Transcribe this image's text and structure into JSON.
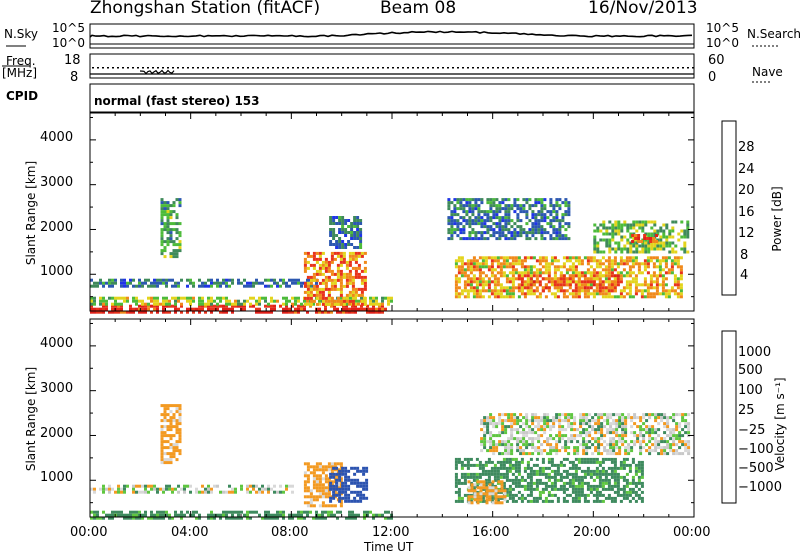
{
  "header": {
    "station": "Zhongshan Station",
    "mode": "(fitACF)",
    "beam": "Beam 08",
    "date": "16/Nov/2013"
  },
  "aux_panels": {
    "nsky_label": "N.Sky",
    "nsky_ticks": [
      "10^5",
      "10^0"
    ],
    "nsearch_label": "N.Search",
    "nsearch_ticks": [
      "10^5",
      "10^0"
    ],
    "freq_label": "Freq.",
    "freq_unit": "[MHz]",
    "freq_ticks": [
      "18",
      "8"
    ],
    "nave_label": "Nave",
    "nave_ticks": [
      "60",
      "0"
    ],
    "cpid_label": "CPID",
    "cpid_text": "normal (fast stereo) 153"
  },
  "chart_data": [
    {
      "type": "heatmap",
      "name": "power",
      "ylabel": "Slant Range [km]",
      "yticks": [
        "1000",
        "2000",
        "3000",
        "4000"
      ],
      "ylim": [
        180,
        4600
      ],
      "xlim": [
        "00:00",
        "24:00"
      ],
      "colorbar": {
        "label": "Power [dB]",
        "ticks": [
          "4",
          "8",
          "12",
          "16",
          "20",
          "24",
          "28"
        ],
        "levels": [
          {
            "max": 4,
            "color": "#1f34e6"
          },
          {
            "max": 8,
            "color": "#2c58b0"
          },
          {
            "max": 12,
            "color": "#3f8a5a"
          },
          {
            "max": 16,
            "color": "#4dbb3a"
          },
          {
            "max": 20,
            "color": "#e3d41d"
          },
          {
            "max": 24,
            "color": "#f0891a"
          },
          {
            "max": 28,
            "color": "#e8321c"
          },
          {
            "max": 32,
            "color": "#e0201a"
          }
        ]
      },
      "regions": [
        {
          "t0": 0.0,
          "t1": 11.8,
          "r0": 180,
          "r1": 320,
          "level": 28
        },
        {
          "t0": 0.0,
          "t1": 12.0,
          "r0": 320,
          "r1": 500,
          "level": 16
        },
        {
          "t0": 0.0,
          "t1": 9.0,
          "r0": 700,
          "r1": 900,
          "level": 8
        },
        {
          "t0": 2.8,
          "t1": 3.6,
          "r0": 1400,
          "r1": 2700,
          "level": 12
        },
        {
          "t0": 8.5,
          "t1": 11.0,
          "r0": 300,
          "r1": 1500,
          "level": 22
        },
        {
          "t0": 9.5,
          "t1": 10.8,
          "r0": 1600,
          "r1": 2300,
          "level": 8
        },
        {
          "t0": 14.5,
          "t1": 23.5,
          "r0": 500,
          "r1": 1400,
          "level": 20
        },
        {
          "t0": 17.0,
          "t1": 21.0,
          "r0": 600,
          "r1": 1000,
          "level": 24
        },
        {
          "t0": 14.2,
          "t1": 19.0,
          "r0": 1800,
          "r1": 2700,
          "level": 8
        },
        {
          "t0": 20.0,
          "t1": 23.8,
          "r0": 1500,
          "r1": 2200,
          "level": 14
        },
        {
          "t0": 21.5,
          "t1": 22.5,
          "r0": 1700,
          "r1": 1900,
          "level": 26
        }
      ]
    },
    {
      "type": "heatmap",
      "name": "velocity",
      "ylabel": "Slant Range [km]",
      "yticks": [
        "1000",
        "2000",
        "3000",
        "4000"
      ],
      "ylim": [
        180,
        4600
      ],
      "xlim": [
        "00:00",
        "24:00"
      ],
      "xticks": [
        "00:00",
        "04:00",
        "08:00",
        "12:00",
        "16:00",
        "20:00",
        "00:00"
      ],
      "xlabel": "Time UT",
      "colorbar": {
        "label": "Velocity [m s⁻¹]",
        "ticks": [
          "1000",
          "500",
          "100",
          "25",
          "−25",
          "−100",
          "−500",
          "−1000"
        ],
        "levels": [
          {
            "max": -1000,
            "color": "#e0201a"
          },
          {
            "max": -500,
            "color": "#ee5a1c"
          },
          {
            "max": -100,
            "color": "#f39a22"
          },
          {
            "max": -25,
            "color": "#d8d8d8"
          },
          {
            "max": 25,
            "color": "#c8c8c8"
          },
          {
            "max": 100,
            "color": "#5fc640"
          },
          {
            "max": 500,
            "color": "#3e8a5e"
          },
          {
            "max": 1000,
            "color": "#2b53b0"
          },
          {
            "max": 1500,
            "color": "#1f34e6"
          }
        ]
      },
      "regions": [
        {
          "t0": 0.0,
          "t1": 12.0,
          "r0": 180,
          "r1": 320,
          "level": 200
        },
        {
          "t0": 0.0,
          "t1": 8.0,
          "r0": 700,
          "r1": 900,
          "level": 0
        },
        {
          "t0": 2.8,
          "t1": 3.6,
          "r0": 1400,
          "r1": 2700,
          "level": -200
        },
        {
          "t0": 8.5,
          "t1": 10.0,
          "r0": 400,
          "r1": 1400,
          "level": -200
        },
        {
          "t0": 9.5,
          "t1": 11.0,
          "r0": 500,
          "r1": 1300,
          "level": 800
        },
        {
          "t0": 14.5,
          "t1": 22.0,
          "r0": 500,
          "r1": 1500,
          "level": 200
        },
        {
          "t0": 15.0,
          "t1": 16.5,
          "r0": 500,
          "r1": 1000,
          "level": -200
        },
        {
          "t0": 15.5,
          "t1": 23.8,
          "r0": 1600,
          "r1": 2500,
          "level": 0
        }
      ]
    }
  ]
}
